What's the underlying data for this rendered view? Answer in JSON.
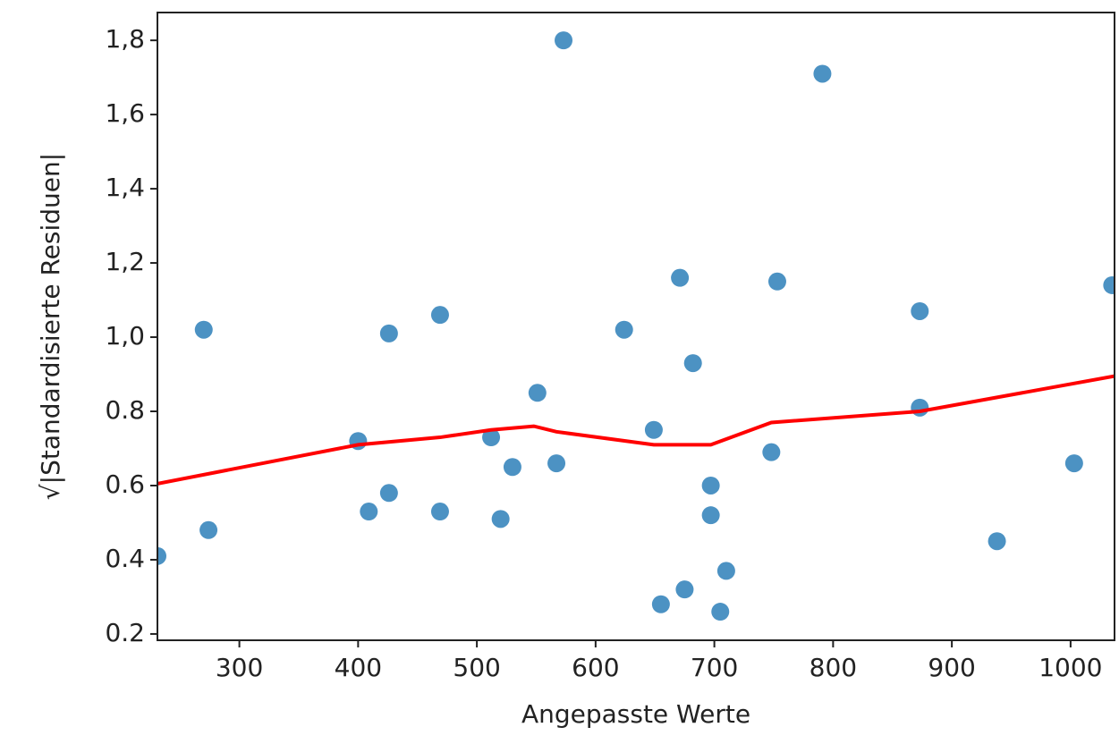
{
  "chart_data": {
    "type": "scatter",
    "xlabel": "Angepasste Werte",
    "ylabel": "√|Standardisierte Residuen|",
    "xlim": [
      231,
      1037
    ],
    "ylim": [
      0.183,
      1.875
    ],
    "xticks": [
      300,
      400,
      500,
      600,
      700,
      800,
      900,
      1000
    ],
    "yticks": [
      0.2,
      0.4,
      0.6,
      0.8,
      {
        "value": 1.0,
        "label": "1,0"
      },
      {
        "value": 1.2,
        "label": "1,2"
      },
      {
        "value": 1.4,
        "label": "1,4"
      },
      {
        "value": 1.6,
        "label": "1,6"
      },
      {
        "value": 1.8,
        "label": "1,8"
      }
    ],
    "grid": false,
    "series": [
      {
        "type": "scatter",
        "color": "#1f77b4",
        "x": [
          231,
          270,
          274,
          400,
          409,
          426,
          426,
          469,
          469,
          512,
          520,
          530,
          551,
          567,
          573,
          624,
          649,
          655,
          671,
          675,
          682,
          697,
          697,
          705,
          710,
          748,
          753,
          791,
          873,
          873,
          938,
          1003,
          1035
        ],
        "values": [
          0.41,
          1.02,
          0.48,
          0.72,
          0.53,
          0.58,
          1.01,
          0.53,
          1.06,
          0.73,
          0.51,
          0.65,
          0.85,
          0.66,
          1.8,
          1.02,
          0.75,
          0.28,
          1.16,
          0.32,
          0.93,
          0.6,
          0.52,
          0.26,
          0.37,
          0.69,
          1.15,
          1.71,
          1.07,
          0.81,
          0.45,
          0.66,
          1.14
        ]
      },
      {
        "type": "line",
        "color": "#ff0000",
        "x": [
          231,
          400,
          469,
          512,
          548,
          567,
          649,
          697,
          748,
          873,
          1037
        ],
        "values": [
          0.605,
          0.71,
          0.73,
          0.75,
          0.76,
          0.745,
          0.71,
          0.71,
          0.77,
          0.8,
          0.895
        ]
      }
    ]
  }
}
